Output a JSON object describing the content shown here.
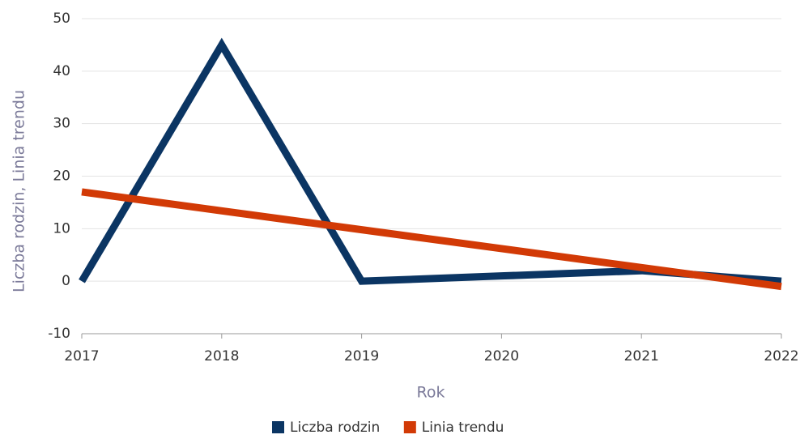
{
  "chart_data": {
    "type": "line",
    "x_label": "Rok",
    "y_label": "Liczba rodzin, Linia trendu",
    "x": [
      2017,
      2018,
      2019,
      2020,
      2021,
      2022
    ],
    "series": [
      {
        "name": "Liczba rodzin",
        "color": "#0b3563",
        "values": [
          0,
          45,
          0,
          1,
          2,
          0
        ]
      },
      {
        "name": "Linia trendu",
        "color": "#d23a06",
        "values": [
          17,
          13.4,
          9.8,
          6.2,
          2.6,
          -1
        ]
      }
    ],
    "xlim": [
      2017,
      2022
    ],
    "xticks": [
      2017,
      2018,
      2019,
      2020,
      2021,
      2022
    ],
    "ylim": [
      -10,
      50
    ],
    "yticks": [
      -10,
      0,
      10,
      20,
      30,
      40,
      50
    ],
    "grid": true,
    "legend": "bottom"
  }
}
